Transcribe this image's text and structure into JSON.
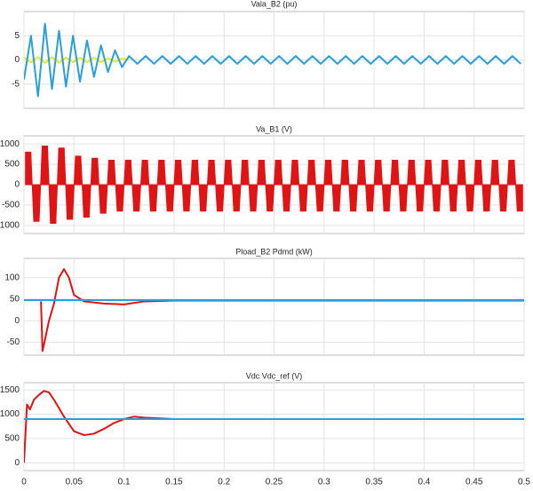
{
  "chart_data": [
    {
      "type": "line",
      "title": "Vala_B2 (pu)",
      "xlim": [
        0,
        0.5
      ],
      "xticks": [
        0,
        0.05,
        0.1,
        0.15,
        0.2,
        0.25,
        0.3,
        0.35,
        0.4,
        0.45,
        0.5
      ],
      "ylim": [
        -10,
        10
      ],
      "yticks": [
        -5,
        0,
        5
      ],
      "grid": true,
      "x": [
        0,
        0.007,
        0.014,
        0.021,
        0.028,
        0.035,
        0.042,
        0.049,
        0.056,
        0.063,
        0.07,
        0.077,
        0.084,
        0.091,
        0.098,
        0.105,
        0.1133,
        0.1217,
        0.13,
        0.1383,
        0.1467,
        0.155,
        0.1633,
        0.1717,
        0.18,
        0.1883,
        0.1967,
        0.205,
        0.2133,
        0.2217,
        0.23,
        0.2383,
        0.2467,
        0.255,
        0.2633,
        0.2717,
        0.28,
        0.2883,
        0.2967,
        0.305,
        0.3133,
        0.3217,
        0.33,
        0.3383,
        0.3467,
        0.355,
        0.3633,
        0.3717,
        0.38,
        0.3883,
        0.3967,
        0.405,
        0.4133,
        0.4217,
        0.43,
        0.4383,
        0.4467,
        0.455,
        0.4633,
        0.4717,
        0.48,
        0.4883,
        0.4967
      ],
      "series": [
        {
          "color": "#e8e82a",
          "x": [
            0,
            0.007,
            0.014,
            0.021,
            0.028,
            0.035,
            0.042,
            0.049,
            0.056,
            0.063,
            0.07,
            0.077,
            0.084,
            0.091,
            0.098,
            0.105
          ],
          "values": [
            0.5,
            -0.5,
            0.6,
            -0.6,
            0.6,
            -0.6,
            0.5,
            -0.5,
            0.5,
            -0.5,
            0.5,
            -0.5,
            0.4,
            -0.4,
            0.3,
            0
          ]
        },
        {
          "color": "#2a9fd8",
          "values": [
            -4,
            5,
            -7.5,
            7.5,
            -6,
            6,
            -5.5,
            5,
            -4.5,
            4,
            -3.5,
            3,
            -2.5,
            2,
            -1.5,
            0.8,
            -0.8,
            0.8,
            -0.8,
            0.8,
            -0.8,
            0.8,
            -0.8,
            0.8,
            -0.8,
            0.8,
            -0.8,
            0.8,
            -0.8,
            0.8,
            -0.8,
            0.8,
            -0.8,
            0.8,
            -0.8,
            0.8,
            -0.8,
            0.8,
            -0.8,
            0.8,
            -0.8,
            0.8,
            -0.8,
            0.8,
            -0.8,
            0.8,
            -0.8,
            0.8,
            -0.8,
            0.8,
            -0.8,
            0.8,
            -0.8,
            0.8,
            -0.8,
            0.8,
            -0.8,
            0.8,
            -0.8,
            0.8,
            -0.8,
            0.8,
            -0.8
          ]
        }
      ]
    },
    {
      "type": "area",
      "title": "Va_B1 (V)",
      "xlim": [
        0,
        0.5
      ],
      "xticks": [
        0,
        0.05,
        0.1,
        0.15,
        0.2,
        0.25,
        0.3,
        0.35,
        0.4,
        0.45,
        0.5
      ],
      "ylim": [
        -1200,
        1200
      ],
      "yticks": [
        -1000,
        -500,
        0,
        500,
        1000
      ],
      "grid": true,
      "x": [
        0.0015,
        0.0068,
        0.0098,
        0.0151,
        0.0182,
        0.0235,
        0.0265,
        0.0318,
        0.0348,
        0.0401,
        0.0432,
        0.0485,
        0.0515,
        0.0568,
        0.0598,
        0.0651,
        0.0682,
        0.0735,
        0.0765,
        0.0818,
        0.0848,
        0.0901,
        0.0932,
        0.0985,
        0.1015,
        0.1068,
        0.1098,
        0.1151,
        0.1182,
        0.1235,
        0.1265,
        0.1318,
        0.1348,
        0.1401,
        0.1432,
        0.1485,
        0.1515,
        0.1568,
        0.1598,
        0.1651,
        0.1682,
        0.1735,
        0.1765,
        0.1818,
        0.1848,
        0.1901,
        0.1932,
        0.1985,
        0.2015,
        0.2068,
        0.2098,
        0.2151,
        0.2182,
        0.2235,
        0.2265,
        0.2318,
        0.2348,
        0.2401,
        0.2432,
        0.2485,
        0.2515,
        0.2568,
        0.2598,
        0.2651,
        0.2682,
        0.2735,
        0.2765,
        0.2818,
        0.2848,
        0.2901,
        0.2932,
        0.2985,
        0.3015,
        0.3068,
        0.3098,
        0.3151,
        0.3182,
        0.3235,
        0.3265,
        0.3318,
        0.3348,
        0.3401,
        0.3432,
        0.3485,
        0.3515,
        0.3568,
        0.3598,
        0.3651,
        0.3682,
        0.3735,
        0.3765,
        0.3818,
        0.3848,
        0.3901,
        0.3932,
        0.3985,
        0.4015,
        0.4068,
        0.4098,
        0.4151,
        0.4182,
        0.4235,
        0.4265,
        0.4318,
        0.4348,
        0.4401,
        0.4432,
        0.4485,
        0.4515,
        0.4568,
        0.4598,
        0.4651,
        0.4682,
        0.4735,
        0.4765,
        0.4818,
        0.4848,
        0.4901,
        0.4932,
        0.4985
      ],
      "series": [
        {
          "color": "#e01414",
          "values": [
            800,
            800,
            -900,
            -900,
            950,
            950,
            -950,
            -950,
            900,
            900,
            -850,
            -850,
            700,
            700,
            -800,
            -800,
            650,
            650,
            -700,
            -700,
            600,
            600,
            -650,
            -650,
            600,
            600,
            -650,
            -650,
            600,
            600,
            -650,
            -650,
            600,
            600,
            -650,
            -650,
            600,
            600,
            -650,
            -650,
            600,
            600,
            -650,
            -650,
            600,
            600,
            -650,
            -650,
            600,
            600,
            -650,
            -650,
            600,
            600,
            -650,
            -650,
            600,
            600,
            -650,
            -650,
            600,
            600,
            -650,
            -650,
            600,
            600,
            -650,
            -650,
            600,
            600,
            -650,
            -650,
            600,
            600,
            -650,
            -650,
            600,
            600,
            -650,
            -650,
            600,
            600,
            -650,
            -650,
            600,
            600,
            -650,
            -650,
            600,
            600,
            -650,
            -650,
            600,
            600,
            -650,
            -650,
            600,
            600,
            -650,
            -650,
            600,
            600,
            -650,
            -650,
            600,
            600,
            -650,
            -650,
            600,
            600,
            -650,
            -650,
            600,
            600,
            -650,
            -650,
            600,
            600,
            -650,
            -650
          ]
        }
      ]
    },
    {
      "type": "line",
      "title": "Pload_B2 Pdmd (kW)",
      "xlim": [
        0,
        0.5
      ],
      "xticks": [
        0,
        0.05,
        0.1,
        0.15,
        0.2,
        0.25,
        0.3,
        0.35,
        0.4,
        0.45,
        0.5
      ],
      "ylim": [
        -80,
        145
      ],
      "yticks": [
        -50,
        0,
        50,
        100
      ],
      "grid": true,
      "series": [
        {
          "color": "#e01414",
          "x": [
            0.017,
            0.0185,
            0.02,
            0.025,
            0.03,
            0.035,
            0.04,
            0.045,
            0.05,
            0.06,
            0.08,
            0.1,
            0.12,
            0.15,
            0.5
          ],
          "values": [
            45,
            -70,
            -55,
            0,
            40,
            100,
            120,
            100,
            60,
            45,
            40,
            38,
            45,
            47,
            47
          ]
        },
        {
          "color": "#2a9fd8",
          "x": [
            0,
            0.5
          ],
          "values": [
            48,
            48
          ]
        }
      ]
    },
    {
      "type": "line",
      "title": "Vdc Vdc_ref (V)",
      "xlim": [
        0,
        0.5
      ],
      "xticks": [
        0,
        0.05,
        0.1,
        0.15,
        0.2,
        0.25,
        0.3,
        0.35,
        0.4,
        0.45,
        0.5
      ],
      "ylim": [
        -160,
        1650
      ],
      "yticks": [
        0,
        500,
        1000,
        1500
      ],
      "grid": true,
      "series": [
        {
          "color": "#e01414",
          "x": [
            0,
            0.003,
            0.006,
            0.01,
            0.015,
            0.02,
            0.025,
            0.03,
            0.04,
            0.05,
            0.06,
            0.07,
            0.08,
            0.09,
            0.1,
            0.11,
            0.12,
            0.15,
            0.5
          ],
          "values": [
            0,
            1200,
            1100,
            1300,
            1400,
            1480,
            1450,
            1300,
            950,
            650,
            570,
            600,
            700,
            820,
            900,
            950,
            930,
            900,
            900
          ]
        },
        {
          "color": "#2a9fd8",
          "x": [
            0,
            0.5
          ],
          "values": [
            900,
            900
          ]
        }
      ]
    }
  ]
}
